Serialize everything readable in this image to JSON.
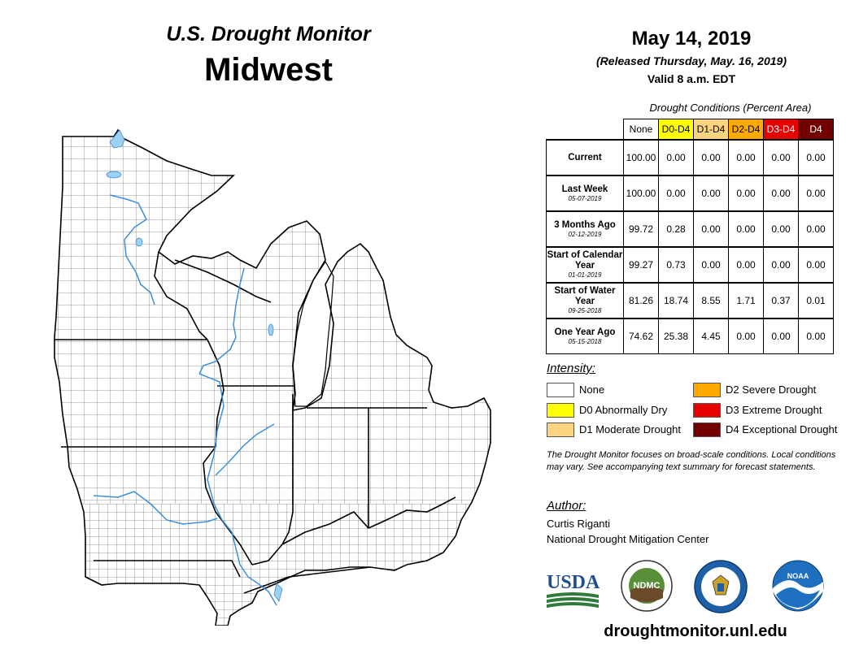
{
  "header": {
    "title": "U.S. Drought Monitor",
    "region": "Midwest"
  },
  "info": {
    "date": "May 14, 2019",
    "released": "(Released Thursday, May. 16, 2019)",
    "valid": "Valid 8 a.m. EDT"
  },
  "conditions": {
    "title": "Drought Conditions (Percent Area)",
    "columns": [
      "None",
      "D0-D4",
      "D1-D4",
      "D2-D4",
      "D3-D4",
      "D4"
    ],
    "column_colors": [
      "#ffffff",
      "#ffff00",
      "#fcd37f",
      "#ffaa00",
      "#e60000",
      "#730000"
    ],
    "rows": [
      {
        "label": "Current",
        "date": "",
        "values": [
          "100.00",
          "0.00",
          "0.00",
          "0.00",
          "0.00",
          "0.00"
        ]
      },
      {
        "label": "Last Week",
        "date": "05-07-2019",
        "values": [
          "100.00",
          "0.00",
          "0.00",
          "0.00",
          "0.00",
          "0.00"
        ]
      },
      {
        "label": "3 Months Ago",
        "date": "02-12-2019",
        "values": [
          "99.72",
          "0.28",
          "0.00",
          "0.00",
          "0.00",
          "0.00"
        ]
      },
      {
        "label": "Start of Calendar Year",
        "date": "01-01-2019",
        "values": [
          "99.27",
          "0.73",
          "0.00",
          "0.00",
          "0.00",
          "0.00"
        ]
      },
      {
        "label": "Start of Water Year",
        "date": "09-25-2018",
        "values": [
          "81.26",
          "18.74",
          "8.55",
          "1.71",
          "0.37",
          "0.01"
        ]
      },
      {
        "label": "One Year Ago",
        "date": "05-15-2018",
        "values": [
          "74.62",
          "25.38",
          "4.45",
          "0.00",
          "0.00",
          "0.00"
        ]
      }
    ]
  },
  "intensity": {
    "title": "Intensity:",
    "items": [
      {
        "label": "None",
        "color": "#ffffff"
      },
      {
        "label": "D0 Abnormally Dry",
        "color": "#ffff00"
      },
      {
        "label": "D1 Moderate Drought",
        "color": "#fcd37f"
      },
      {
        "label": "D2 Severe Drought",
        "color": "#ffaa00"
      },
      {
        "label": "D3 Extreme Drought",
        "color": "#e60000"
      },
      {
        "label": "D4 Exceptional Drought",
        "color": "#730000"
      }
    ]
  },
  "note": "The Drought Monitor focuses on broad-scale conditions. Local conditions may vary. See accompanying text summary for forecast statements.",
  "author": {
    "title": "Author:",
    "name": "Curtis Riganti",
    "org": "National Drought Mitigation Center"
  },
  "logos": {
    "usda": "USDA",
    "ndmc": "NDMC",
    "noaa": "NOAA"
  },
  "website": "droughtmonitor.unl.edu",
  "map": {
    "water_color": "#9fd0f0",
    "river_color": "#3a8fe0",
    "land_color": "#ffffff",
    "state_border_color": "#000000"
  }
}
